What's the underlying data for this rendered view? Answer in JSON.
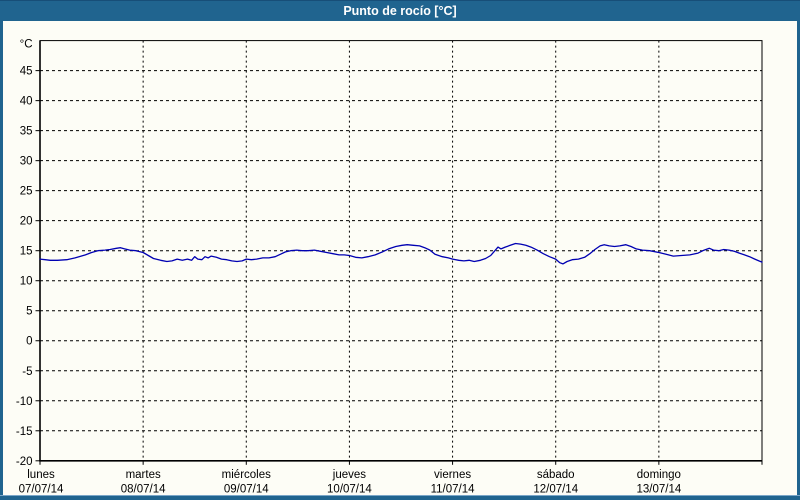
{
  "window": {
    "title": "Punto de rocío [°C]"
  },
  "colors": {
    "titlebar": "#20648f",
    "frame": "#20648f",
    "background": "#fdfdf6",
    "axis": "#000000",
    "grid": "#000000",
    "line": "#0000b2",
    "title_text": "#ffffff"
  },
  "chart_data": {
    "type": "line",
    "title": "Punto de rocío [°C]",
    "ylabel": "°C",
    "ylim": [
      -20,
      50
    ],
    "yticks": [
      45,
      40,
      35,
      30,
      25,
      20,
      15,
      10,
      5,
      0,
      -5,
      -10,
      -15,
      -20
    ],
    "grid": "dashed, horizontal every 5°C and vertical at each day boundary",
    "legend_position": "none",
    "x_axis_days": [
      {
        "name": "lunes",
        "date": "07/07/14"
      },
      {
        "name": "martes",
        "date": "08/07/14"
      },
      {
        "name": "miércoles",
        "date": "09/07/14"
      },
      {
        "name": "jueves",
        "date": "10/07/14"
      },
      {
        "name": "viernes",
        "date": "11/07/14"
      },
      {
        "name": "sábado",
        "date": "12/07/14"
      },
      {
        "name": "domingo",
        "date": "13/07/14"
      }
    ],
    "series": [
      {
        "name": "Punto de rocío",
        "color": "#0000b2",
        "x_unit": "days from lunes 07/07/14 00:00",
        "points": [
          [
            0.0,
            13.6
          ],
          [
            0.05,
            13.5
          ],
          [
            0.1,
            13.4
          ],
          [
            0.17,
            13.4
          ],
          [
            0.26,
            13.5
          ],
          [
            0.34,
            13.8
          ],
          [
            0.44,
            14.3
          ],
          [
            0.5,
            14.7
          ],
          [
            0.56,
            15.0
          ],
          [
            0.63,
            15.1
          ],
          [
            0.68,
            15.2
          ],
          [
            0.74,
            15.4
          ],
          [
            0.78,
            15.5
          ],
          [
            0.82,
            15.3
          ],
          [
            0.87,
            15.1
          ],
          [
            0.93,
            15.0
          ],
          [
            1.0,
            14.7
          ],
          [
            1.05,
            14.2
          ],
          [
            1.1,
            13.7
          ],
          [
            1.17,
            13.4
          ],
          [
            1.23,
            13.2
          ],
          [
            1.28,
            13.3
          ],
          [
            1.33,
            13.6
          ],
          [
            1.38,
            13.4
          ],
          [
            1.43,
            13.6
          ],
          [
            1.47,
            13.4
          ],
          [
            1.5,
            14.0
          ],
          [
            1.53,
            13.6
          ],
          [
            1.57,
            13.5
          ],
          [
            1.6,
            14.0
          ],
          [
            1.63,
            13.8
          ],
          [
            1.66,
            14.1
          ],
          [
            1.71,
            13.9
          ],
          [
            1.76,
            13.6
          ],
          [
            1.81,
            13.5
          ],
          [
            1.86,
            13.3
          ],
          [
            1.91,
            13.2
          ],
          [
            1.96,
            13.3
          ],
          [
            2.0,
            13.6
          ],
          [
            2.05,
            13.5
          ],
          [
            2.1,
            13.6
          ],
          [
            2.16,
            13.8
          ],
          [
            2.22,
            13.8
          ],
          [
            2.28,
            14.0
          ],
          [
            2.33,
            14.4
          ],
          [
            2.38,
            14.8
          ],
          [
            2.43,
            15.0
          ],
          [
            2.49,
            15.1
          ],
          [
            2.54,
            15.0
          ],
          [
            2.6,
            15.0
          ],
          [
            2.66,
            15.1
          ],
          [
            2.72,
            14.9
          ],
          [
            2.78,
            14.7
          ],
          [
            2.84,
            14.5
          ],
          [
            2.9,
            14.3
          ],
          [
            2.95,
            14.3
          ],
          [
            3.0,
            14.2
          ],
          [
            3.06,
            13.9
          ],
          [
            3.12,
            13.8
          ],
          [
            3.18,
            14.0
          ],
          [
            3.25,
            14.3
          ],
          [
            3.32,
            14.8
          ],
          [
            3.38,
            15.3
          ],
          [
            3.45,
            15.7
          ],
          [
            3.51,
            15.9
          ],
          [
            3.56,
            16.0
          ],
          [
            3.62,
            15.9
          ],
          [
            3.68,
            15.8
          ],
          [
            3.73,
            15.5
          ],
          [
            3.78,
            15.1
          ],
          [
            3.83,
            14.4
          ],
          [
            3.9,
            14.0
          ],
          [
            3.96,
            13.8
          ],
          [
            4.0,
            13.6
          ],
          [
            4.06,
            13.4
          ],
          [
            4.11,
            13.3
          ],
          [
            4.16,
            13.4
          ],
          [
            4.21,
            13.2
          ],
          [
            4.27,
            13.4
          ],
          [
            4.32,
            13.7
          ],
          [
            4.37,
            14.2
          ],
          [
            4.41,
            15.0
          ],
          [
            4.44,
            15.6
          ],
          [
            4.47,
            15.3
          ],
          [
            4.51,
            15.6
          ],
          [
            4.56,
            15.9
          ],
          [
            4.61,
            16.2
          ],
          [
            4.66,
            16.1
          ],
          [
            4.71,
            15.9
          ],
          [
            4.76,
            15.6
          ],
          [
            4.82,
            15.1
          ],
          [
            4.88,
            14.5
          ],
          [
            4.94,
            14.0
          ],
          [
            5.0,
            13.6
          ],
          [
            5.04,
            13.0
          ],
          [
            5.07,
            12.8
          ],
          [
            5.11,
            13.2
          ],
          [
            5.16,
            13.5
          ],
          [
            5.22,
            13.6
          ],
          [
            5.28,
            13.9
          ],
          [
            5.33,
            14.5
          ],
          [
            5.38,
            15.2
          ],
          [
            5.43,
            15.8
          ],
          [
            5.47,
            16.0
          ],
          [
            5.52,
            15.8
          ],
          [
            5.57,
            15.7
          ],
          [
            5.62,
            15.8
          ],
          [
            5.68,
            16.0
          ],
          [
            5.73,
            15.7
          ],
          [
            5.78,
            15.3
          ],
          [
            5.84,
            15.1
          ],
          [
            5.91,
            15.0
          ],
          [
            6.0,
            14.7
          ],
          [
            6.07,
            14.4
          ],
          [
            6.14,
            14.1
          ],
          [
            6.22,
            14.2
          ],
          [
            6.3,
            14.3
          ],
          [
            6.38,
            14.6
          ],
          [
            6.44,
            15.1
          ],
          [
            6.49,
            15.4
          ],
          [
            6.53,
            15.1
          ],
          [
            6.58,
            15.0
          ],
          [
            6.63,
            15.2
          ],
          [
            6.68,
            15.1
          ],
          [
            6.73,
            14.9
          ],
          [
            6.78,
            14.6
          ],
          [
            6.83,
            14.3
          ],
          [
            6.88,
            14.0
          ],
          [
            6.93,
            13.6
          ],
          [
            6.97,
            13.3
          ],
          [
            7.0,
            13.1
          ]
        ]
      }
    ]
  }
}
